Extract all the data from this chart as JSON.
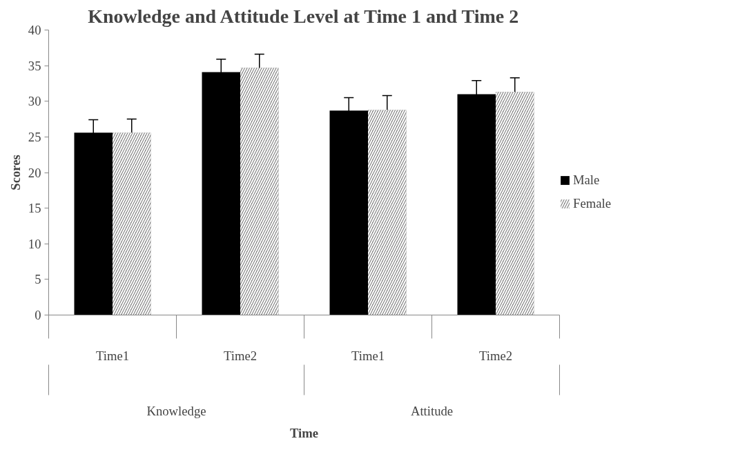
{
  "chart_data": {
    "type": "bar",
    "title": "Knowledge and Attitude Level at Time 1 and Time 2",
    "xlabel": "Time",
    "ylabel": "Scores",
    "categories": [
      "Time1",
      "Time2",
      "Time1",
      "Time2"
    ],
    "annotations": [
      "Knowledge",
      "Attitude"
    ],
    "series": [
      {
        "name": "Male",
        "color": "#000000",
        "values": [
          25.6,
          34.1,
          28.7,
          31.0
        ],
        "errors": [
          1.8,
          1.8,
          1.8,
          1.9
        ]
      },
      {
        "name": "Female",
        "color": "#808080",
        "values": [
          25.6,
          34.7,
          28.8,
          31.3
        ],
        "errors": [
          1.9,
          1.9,
          2.0,
          2.0
        ]
      }
    ],
    "ylim": [
      0,
      40
    ],
    "yticks": [
      0,
      5,
      10,
      15,
      20,
      25,
      30,
      35,
      40
    ],
    "grid": false,
    "legend": "right"
  }
}
